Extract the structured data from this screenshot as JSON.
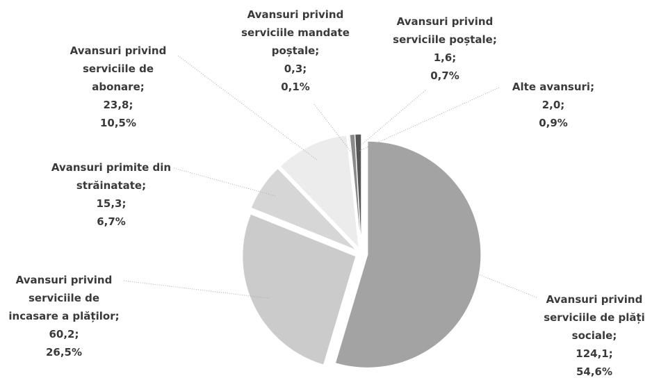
{
  "chart_data": {
    "type": "pie",
    "categories": [
      "Avansuri privind serviciile de plăți sociale",
      "Avansuri privind serviciile de incasare a plăților",
      "Avansuri primite din străinatate",
      "Avansuri privind serviciile de abonare",
      "Avansuri privind serviciile mandate poștale",
      "Avansuri privind serviciile poștale",
      "Alte avansuri"
    ],
    "values": [
      124.1,
      60.2,
      15.3,
      23.8,
      0.3,
      1.6,
      2.0
    ],
    "value_labels": [
      "124,1",
      "60,2",
      "15,3",
      "23,8",
      "0,3",
      "1,6",
      "2,0"
    ],
    "percentages": [
      54.6,
      26.5,
      6.7,
      10.5,
      0.1,
      0.7,
      0.9
    ],
    "percentage_labels": [
      "54,6%",
      "26,5%",
      "6,7%",
      "10,5%",
      "0,1%",
      "0,7%",
      "0,9%"
    ],
    "colors": [
      "#a3a3a3",
      "#cbcbcb",
      "#d6d6d6",
      "#ececec",
      "#c0c0c0",
      "#8a8a8a",
      "#555555"
    ]
  }
}
